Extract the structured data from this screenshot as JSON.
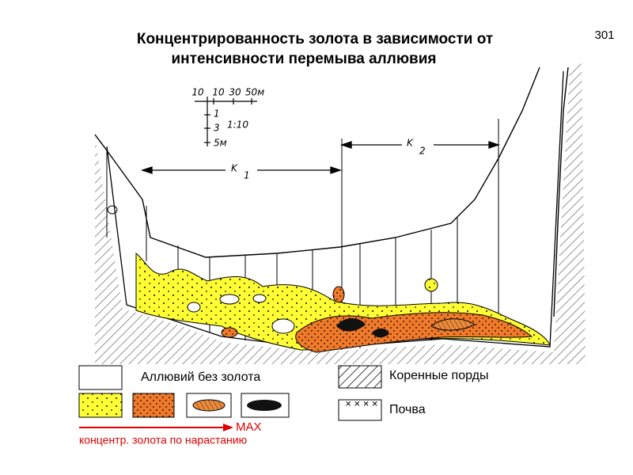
{
  "page_number": "301",
  "title": {
    "line1": "Концентрированность золота в зависимости от",
    "line2": "интенсивности перемыва аллювия"
  },
  "scale": {
    "horizontal": [
      "10",
      "10",
      "30",
      "50м"
    ],
    "vertical": [
      "1",
      "3",
      "5м"
    ],
    "ratio": "1:10"
  },
  "sections": [
    {
      "label": "K",
      "subscript": "1"
    },
    {
      "label": "K",
      "subscript": "2"
    }
  ],
  "legend": {
    "alluvium": "Аллювий без золота",
    "bedrock": "Коренные порды",
    "soil": "Почва"
  },
  "concentration": {
    "max": "MAX",
    "caption": "концентр. золота по нарастанию"
  }
}
